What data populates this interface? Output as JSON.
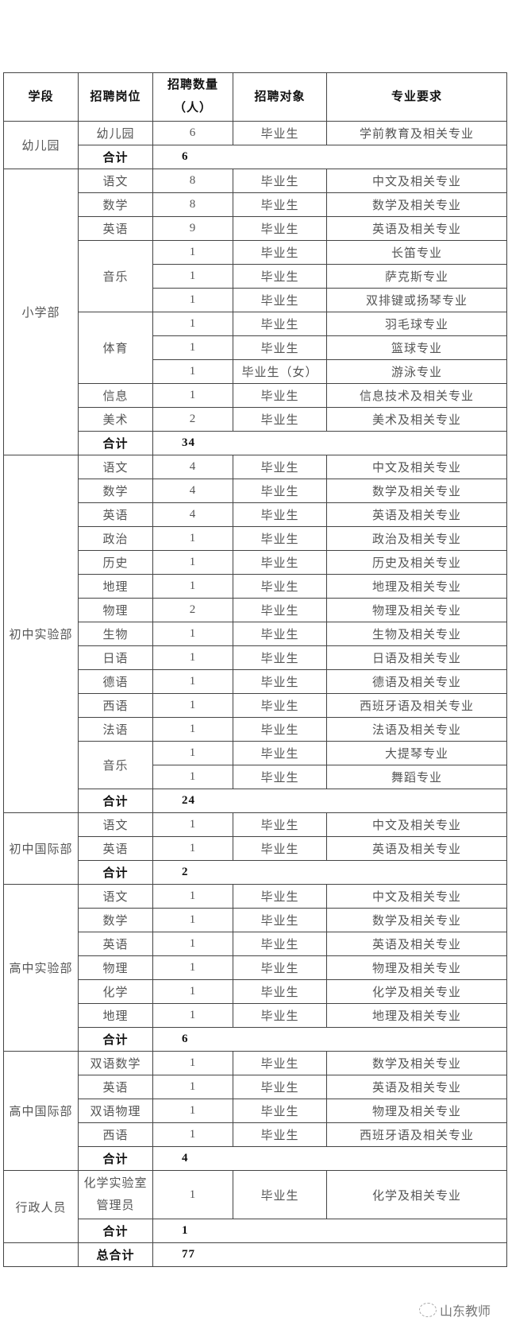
{
  "headers": [
    "学段",
    "招聘岗位",
    "招聘数量（人）",
    "招聘对象",
    "专业要求"
  ],
  "total_label": "合计",
  "grand_total_label": "总合计",
  "grand_total": "77",
  "sections": [
    {
      "name": "幼儿园",
      "total": "6",
      "positions": [
        {
          "name": "幼儿园",
          "entries": [
            {
              "count": "6",
              "target": "毕业生",
              "major": "学前教育及相关专业"
            }
          ]
        }
      ]
    },
    {
      "name": "小学部",
      "total": "34",
      "positions": [
        {
          "name": "语文",
          "entries": [
            {
              "count": "8",
              "target": "毕业生",
              "major": "中文及相关专业"
            }
          ]
        },
        {
          "name": "数学",
          "entries": [
            {
              "count": "8",
              "target": "毕业生",
              "major": "数学及相关专业"
            }
          ]
        },
        {
          "name": "英语",
          "entries": [
            {
              "count": "9",
              "target": "毕业生",
              "major": "英语及相关专业"
            }
          ]
        },
        {
          "name": "音乐",
          "entries": [
            {
              "count": "1",
              "target": "毕业生",
              "major": "长笛专业"
            },
            {
              "count": "1",
              "target": "毕业生",
              "major": "萨克斯专业"
            },
            {
              "count": "1",
              "target": "毕业生",
              "major": "双排键或扬琴专业"
            }
          ]
        },
        {
          "name": "体育",
          "entries": [
            {
              "count": "1",
              "target": "毕业生",
              "major": "羽毛球专业"
            },
            {
              "count": "1",
              "target": "毕业生",
              "major": "篮球专业"
            },
            {
              "count": "1",
              "target": "毕业生（女）",
              "major": "游泳专业"
            }
          ]
        },
        {
          "name": "信息",
          "entries": [
            {
              "count": "1",
              "target": "毕业生",
              "major": "信息技术及相关专业"
            }
          ]
        },
        {
          "name": "美术",
          "entries": [
            {
              "count": "2",
              "target": "毕业生",
              "major": "美术及相关专业"
            }
          ]
        }
      ]
    },
    {
      "name": "初中实验部",
      "total": "24",
      "positions": [
        {
          "name": "语文",
          "entries": [
            {
              "count": "4",
              "target": "毕业生",
              "major": "中文及相关专业"
            }
          ]
        },
        {
          "name": "数学",
          "entries": [
            {
              "count": "4",
              "target": "毕业生",
              "major": "数学及相关专业"
            }
          ]
        },
        {
          "name": "英语",
          "entries": [
            {
              "count": "4",
              "target": "毕业生",
              "major": "英语及相关专业"
            }
          ]
        },
        {
          "name": "政治",
          "entries": [
            {
              "count": "1",
              "target": "毕业生",
              "major": "政治及相关专业"
            }
          ]
        },
        {
          "name": "历史",
          "entries": [
            {
              "count": "1",
              "target": "毕业生",
              "major": "历史及相关专业"
            }
          ]
        },
        {
          "name": "地理",
          "entries": [
            {
              "count": "1",
              "target": "毕业生",
              "major": "地理及相关专业"
            }
          ]
        },
        {
          "name": "物理",
          "entries": [
            {
              "count": "2",
              "target": "毕业生",
              "major": "物理及相关专业"
            }
          ]
        },
        {
          "name": "生物",
          "entries": [
            {
              "count": "1",
              "target": "毕业生",
              "major": "生物及相关专业"
            }
          ]
        },
        {
          "name": "日语",
          "entries": [
            {
              "count": "1",
              "target": "毕业生",
              "major": "日语及相关专业"
            }
          ]
        },
        {
          "name": "德语",
          "entries": [
            {
              "count": "1",
              "target": "毕业生",
              "major": "德语及相关专业"
            }
          ]
        },
        {
          "name": "西语",
          "entries": [
            {
              "count": "1",
              "target": "毕业生",
              "major": "西班牙语及相关专业"
            }
          ]
        },
        {
          "name": "法语",
          "entries": [
            {
              "count": "1",
              "target": "毕业生",
              "major": "法语及相关专业"
            }
          ]
        },
        {
          "name": "音乐",
          "entries": [
            {
              "count": "1",
              "target": "毕业生",
              "major": "大提琴专业"
            },
            {
              "count": "1",
              "target": "毕业生",
              "major": "舞蹈专业"
            }
          ]
        }
      ]
    },
    {
      "name": "初中国际部",
      "total": "2",
      "positions": [
        {
          "name": "语文",
          "entries": [
            {
              "count": "1",
              "target": "毕业生",
              "major": "中文及相关专业"
            }
          ]
        },
        {
          "name": "英语",
          "entries": [
            {
              "count": "1",
              "target": "毕业生",
              "major": "英语及相关专业"
            }
          ]
        }
      ]
    },
    {
      "name": "高中实验部",
      "total": "6",
      "positions": [
        {
          "name": "语文",
          "entries": [
            {
              "count": "1",
              "target": "毕业生",
              "major": "中文及相关专业"
            }
          ]
        },
        {
          "name": "数学",
          "entries": [
            {
              "count": "1",
              "target": "毕业生",
              "major": "数学及相关专业"
            }
          ]
        },
        {
          "name": "英语",
          "entries": [
            {
              "count": "1",
              "target": "毕业生",
              "major": "英语及相关专业"
            }
          ]
        },
        {
          "name": "物理",
          "entries": [
            {
              "count": "1",
              "target": "毕业生",
              "major": "物理及相关专业"
            }
          ]
        },
        {
          "name": "化学",
          "entries": [
            {
              "count": "1",
              "target": "毕业生",
              "major": "化学及相关专业"
            }
          ]
        },
        {
          "name": "地理",
          "entries": [
            {
              "count": "1",
              "target": "毕业生",
              "major": "地理及相关专业"
            }
          ]
        }
      ]
    },
    {
      "name": "高中国际部",
      "total": "4",
      "positions": [
        {
          "name": "双语数学",
          "entries": [
            {
              "count": "1",
              "target": "毕业生",
              "major": "数学及相关专业"
            }
          ]
        },
        {
          "name": "英语",
          "entries": [
            {
              "count": "1",
              "target": "毕业生",
              "major": "英语及相关专业"
            }
          ]
        },
        {
          "name": "双语物理",
          "entries": [
            {
              "count": "1",
              "target": "毕业生",
              "major": "物理及相关专业"
            }
          ]
        },
        {
          "name": "西语",
          "entries": [
            {
              "count": "1",
              "target": "毕业生",
              "major": "西班牙语及相关专业"
            }
          ]
        }
      ]
    },
    {
      "name": "行政人员",
      "total": "1",
      "positions": [
        {
          "name": "化学实验室管理员",
          "entries": [
            {
              "count": "1",
              "target": "毕业生",
              "major": "化学及相关专业"
            }
          ]
        }
      ]
    }
  ],
  "watermark": {
    "text": "山东教师",
    "icon": "wechat-icon"
  }
}
